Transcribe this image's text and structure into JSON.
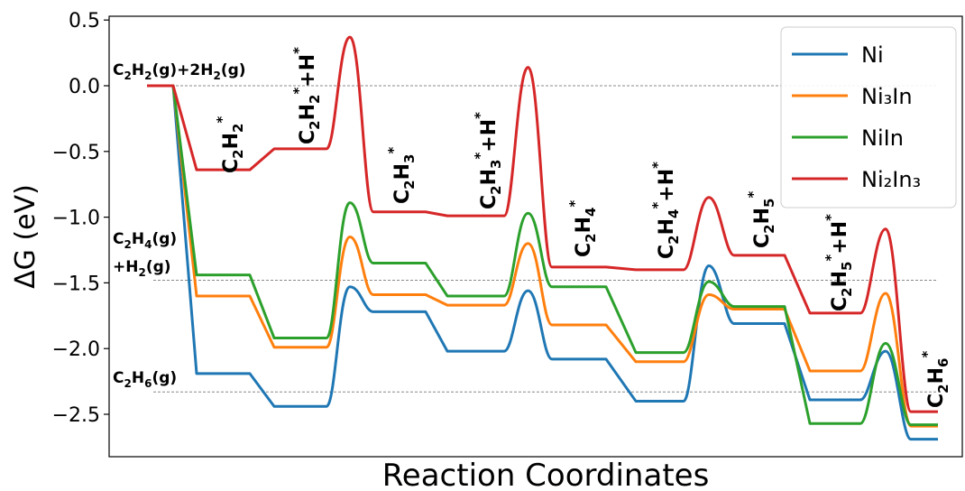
{
  "chart_data": {
    "type": "line",
    "xlabel": "Reaction Coordinates",
    "ylabel": "ΔG (eV)",
    "ylim": [
      -2.8,
      0.52
    ],
    "yticks": [
      "0.5",
      "0.0",
      "−0.5",
      "−1.0",
      "−1.5",
      "−2.0",
      "−2.5"
    ],
    "ytick_values": [
      0.5,
      0.0,
      -0.5,
      -1.0,
      -1.5,
      -2.0,
      -2.5
    ],
    "grid": false,
    "legend_position": "top-right",
    "colors": {
      "Ni": "#1f77b4",
      "Ni3In": "#ff7f0e",
      "NiIn": "#2ca02c",
      "Ni2In3": "#d62728"
    },
    "reference_lines": [
      0.0,
      -1.48,
      -2.33
    ],
    "reference_labels": [
      {
        "base": "C",
        "sub1": "2",
        "mid": "H",
        "sub2": "2",
        "rest": "(g)+2H",
        "sub3": "2",
        "tail": "(g)"
      },
      {
        "line1": "C₂H₄(g)",
        "line2": "+H₂(g)"
      },
      {
        "text": "C₂H₆(g)"
      }
    ],
    "intermediates": [
      "C₂H₂*",
      "C₂H₂*+H*",
      "C₂H₃*",
      "C₂H₃*+H*",
      "C₂H₄*",
      "C₂H₄*+H*",
      "C₂H₅*",
      "C₂H₅*+H*",
      "C₂H₆*"
    ],
    "series": [
      {
        "name": "Ni",
        "states": [
          0.0,
          -2.19,
          -2.44,
          -1.72,
          -2.02,
          -2.08,
          -2.4,
          -1.81,
          -2.39,
          -2.69
        ],
        "barriers": [
          -1.53,
          -1.56,
          -1.37,
          -2.02
        ]
      },
      {
        "name": "Ni₃In",
        "states": [
          0.0,
          -1.6,
          -1.99,
          -1.59,
          -1.67,
          -1.82,
          -2.1,
          -1.7,
          -2.17,
          -2.59
        ],
        "barriers": [
          -1.15,
          -1.2,
          -1.59,
          -1.58
        ]
      },
      {
        "name": "NiIn",
        "states": [
          0.0,
          -1.44,
          -1.92,
          -1.35,
          -1.6,
          -1.53,
          -2.03,
          -1.68,
          -2.57,
          -2.58
        ],
        "barriers": [
          -0.89,
          -0.97,
          -1.49,
          -1.96
        ]
      },
      {
        "name": "Ni₂In₃",
        "states": [
          0.0,
          -0.64,
          -0.48,
          -0.96,
          -0.99,
          -1.38,
          -1.4,
          -1.29,
          -1.73,
          -2.48
        ],
        "barriers": [
          0.37,
          0.14,
          -0.85,
          -1.09
        ]
      }
    ]
  }
}
